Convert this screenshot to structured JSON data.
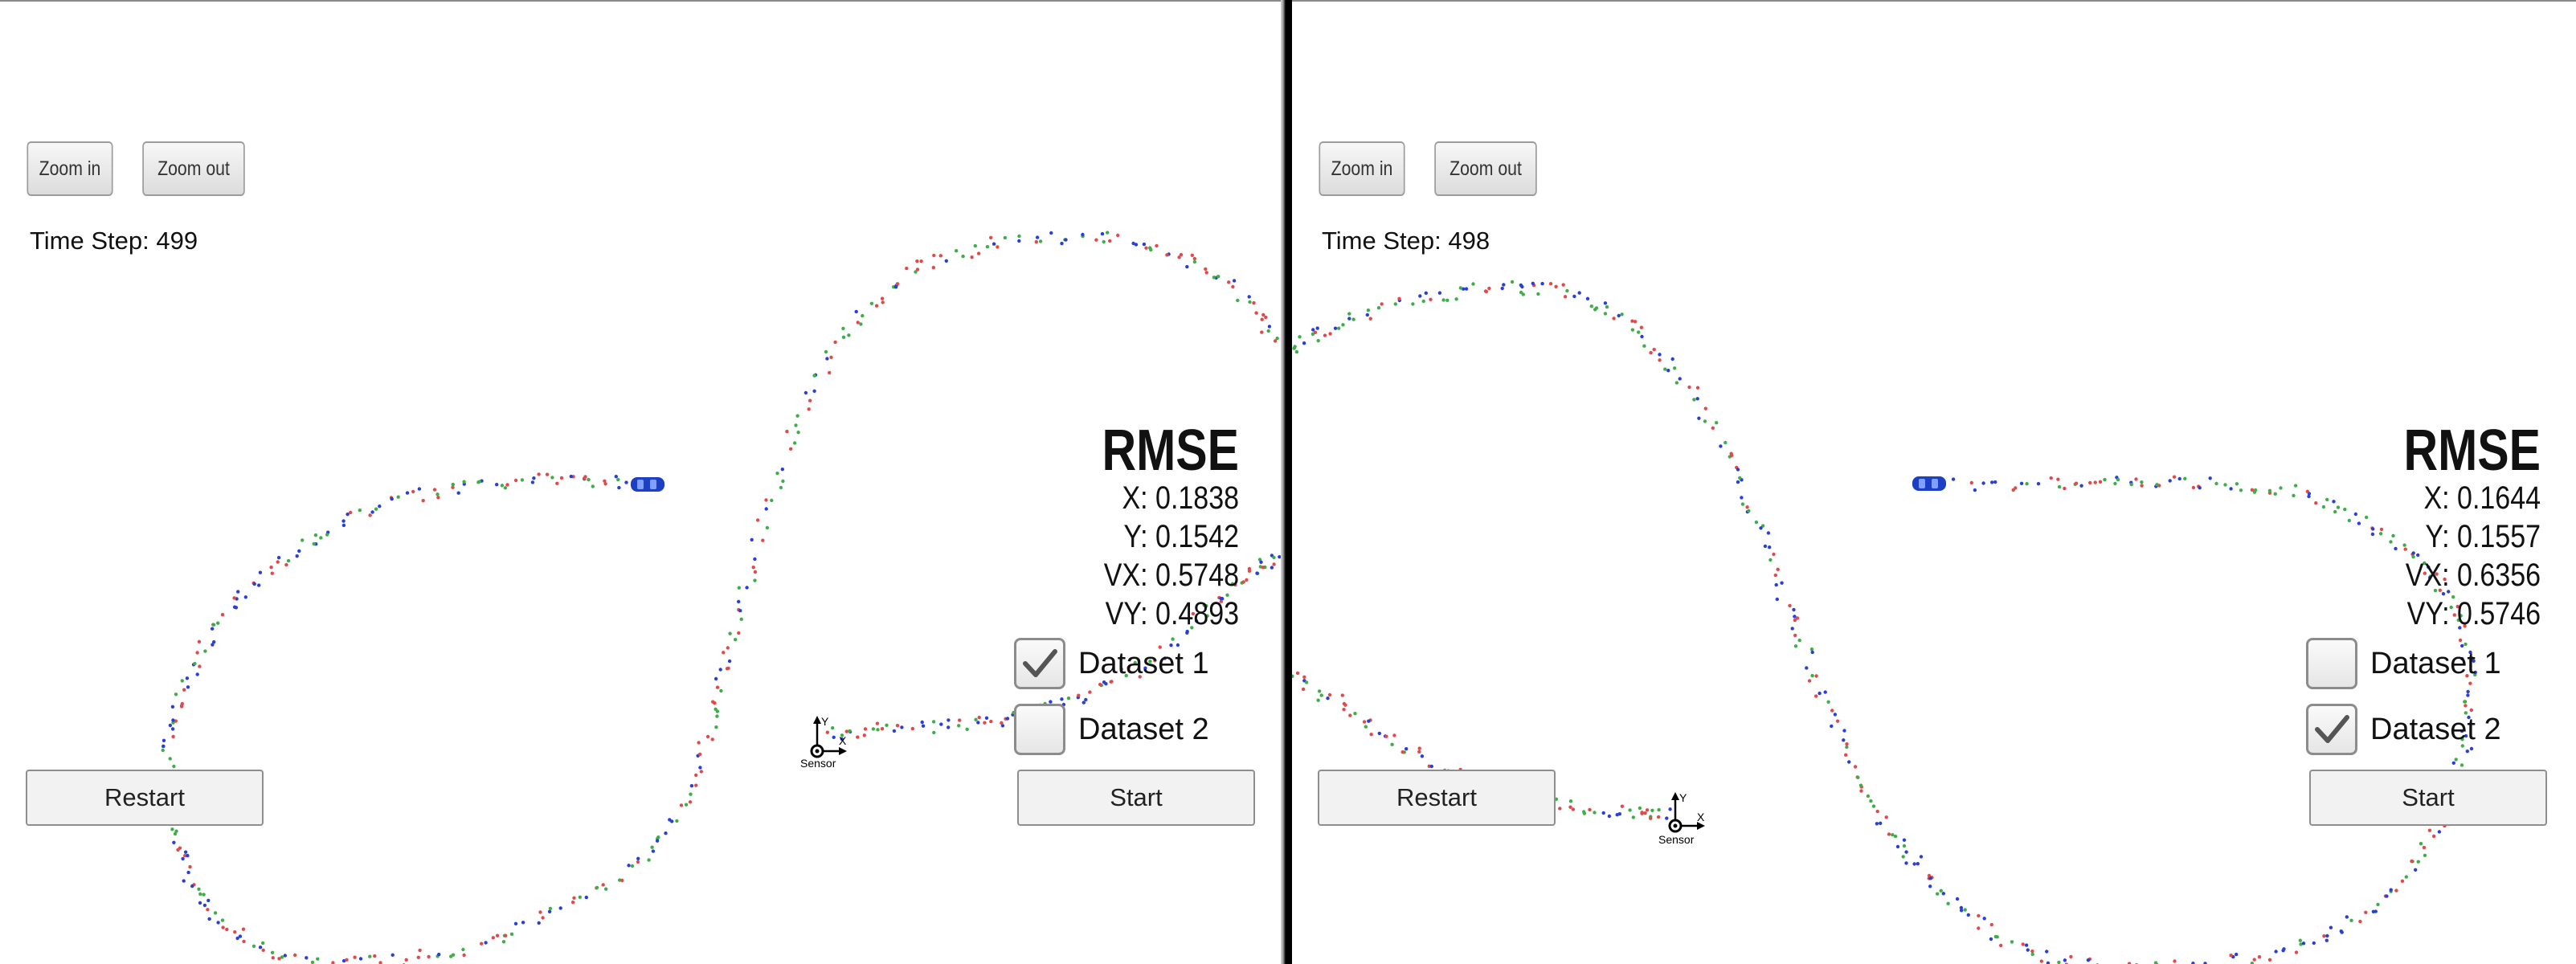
{
  "panels": [
    {
      "zoom_in_label": "Zoom in",
      "zoom_out_label": "Zoom out",
      "time_step_text": "Time Step: 499",
      "rmse": {
        "title": "RMSE",
        "x": "X: 0.1838",
        "y": "Y: 0.1542",
        "vx": "VX: 0.5748",
        "vy": "VY: 0.4893"
      },
      "dataset1": {
        "label": "Dataset 1",
        "checked": true
      },
      "dataset2": {
        "label": "Dataset 2",
        "checked": false
      },
      "restart_label": "Restart",
      "start_label": "Start",
      "sensor_label": "Sensor",
      "axis_x_label": "X",
      "axis_y_label": "Y"
    },
    {
      "zoom_in_label": "Zoom in",
      "zoom_out_label": "Zoom out",
      "time_step_text": "Time Step: 498",
      "rmse": {
        "title": "RMSE",
        "x": "X: 0.1644",
        "y": "Y: 0.1557",
        "vx": "VX: 0.6356",
        "vy": "VY: 0.5746"
      },
      "dataset1": {
        "label": "Dataset 1",
        "checked": false
      },
      "dataset2": {
        "label": "Dataset 2",
        "checked": true
      },
      "restart_label": "Restart",
      "start_label": "Start",
      "sensor_label": "Sensor",
      "axis_x_label": "X",
      "axis_y_label": "Y"
    }
  ],
  "colors": {
    "lidar_marker": "#e04a4a",
    "radar_marker": "#2a3fd6",
    "estimate_marker": "#3fae4a",
    "car": "#1d3fc4"
  },
  "icons": {
    "car": "car-icon",
    "checkmark": "checkmark-icon",
    "sensor": "sensor-axes-icon"
  }
}
